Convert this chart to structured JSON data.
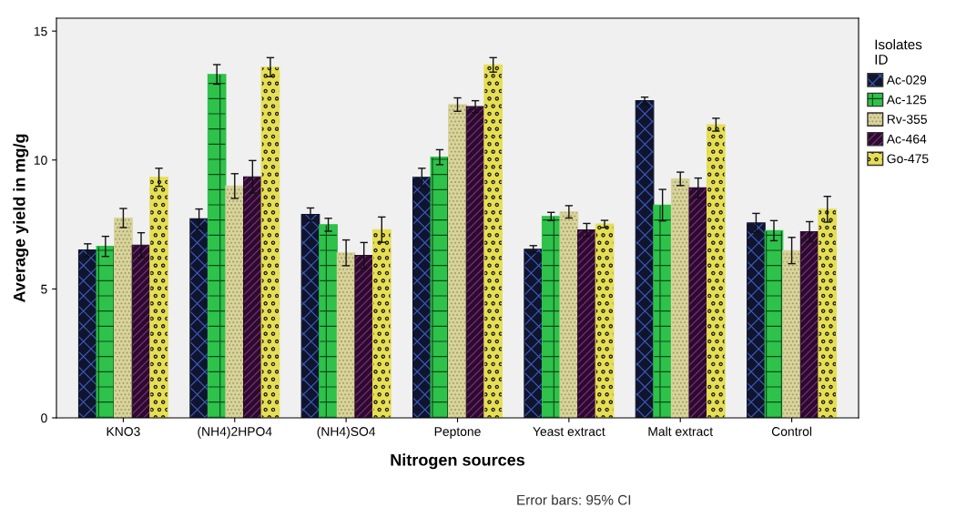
{
  "chart_data": {
    "type": "bar",
    "xlabel": "Nitrogen sources",
    "ylabel": "Average yield in mg/g",
    "legend_title": "Isolates\nID",
    "legend": "right",
    "grid": false,
    "categories": [
      "KNO3",
      "(NH4)2HPO4",
      "(NH4)SO4",
      "Peptone",
      "Yeast extract",
      "Malt extract",
      "Control"
    ],
    "ylim": [
      0,
      15.5
    ],
    "yticks": [
      0,
      5,
      10,
      15
    ],
    "series": [
      {
        "name": "Ac-029",
        "color": "#10142e",
        "values": [
          6.51,
          7.72,
          7.89,
          9.33,
          6.54,
          12.3,
          7.56
        ],
        "errors": [
          0.24,
          0.38,
          0.25,
          0.35,
          0.14,
          0.14,
          0.37
        ]
      },
      {
        "name": "Ac-125",
        "color": "#2ec24a",
        "values": [
          6.65,
          13.32,
          7.49,
          10.11,
          7.81,
          8.25,
          7.26
        ],
        "errors": [
          0.39,
          0.38,
          0.25,
          0.29,
          0.16,
          0.61,
          0.39
        ]
      },
      {
        "name": "Rv-355",
        "color": "#d8d39a",
        "values": [
          7.75,
          8.99,
          6.4,
          12.15,
          7.99,
          9.27,
          6.49
        ],
        "errors": [
          0.37,
          0.48,
          0.5,
          0.26,
          0.24,
          0.26,
          0.51
        ]
      },
      {
        "name": "Ac-464",
        "color": "#2a0c2c",
        "values": [
          6.7,
          9.35,
          6.3,
          12.07,
          7.29,
          8.92,
          7.22
        ],
        "errors": [
          0.48,
          0.63,
          0.5,
          0.23,
          0.25,
          0.38,
          0.39
        ]
      },
      {
        "name": "Go-475",
        "color": "#e6df55",
        "values": [
          9.33,
          13.6,
          7.3,
          13.69,
          7.52,
          11.37,
          8.09
        ],
        "errors": [
          0.35,
          0.37,
          0.49,
          0.28,
          0.14,
          0.25,
          0.5
        ]
      }
    ],
    "annotations": [
      "Error bars: 95% CI"
    ]
  }
}
